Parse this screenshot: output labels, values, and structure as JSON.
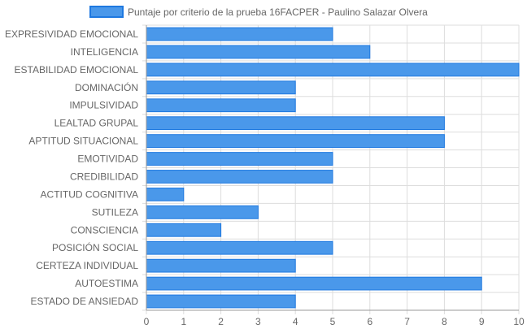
{
  "chart_data": {
    "type": "bar",
    "orientation": "horizontal",
    "title": "",
    "legend_position": "top",
    "categories": [
      "EXPRESIVIDAD EMOCIONAL",
      "INTELIGENCIA",
      "ESTABILIDAD EMOCIONAL",
      "DOMINACIÓN",
      "IMPULSIVIDAD",
      "LEALTAD GRUPAL",
      "APTITUD SITUACIONAL",
      "EMOTIVIDAD",
      "CREDIBILIDAD",
      "ACTITUD COGNITIVA",
      "SUTILEZA",
      "CONSCIENCIA",
      "POSICIÓN SOCIAL",
      "CERTEZA INDIVIDUAL",
      "AUTOESTIMA",
      "ESTADO DE ANSIEDAD"
    ],
    "series": [
      {
        "name": "Puntaje por criterio de la prueba 16FACPER - Paulino Salazar Olvera",
        "values": [
          5,
          6,
          10,
          4,
          4,
          8,
          8,
          5,
          5,
          1,
          3,
          2,
          5,
          4,
          9,
          4
        ],
        "color": "#4a98ea",
        "border_color": "#1e78e0"
      }
    ],
    "x_ticks": [
      "0",
      "1",
      "2",
      "3",
      "4",
      "5",
      "6",
      "7",
      "8",
      "9",
      "10"
    ],
    "xlim": [
      0,
      10
    ],
    "grid": true,
    "grid_color": "#dddddd",
    "axis_color": "#999999"
  }
}
